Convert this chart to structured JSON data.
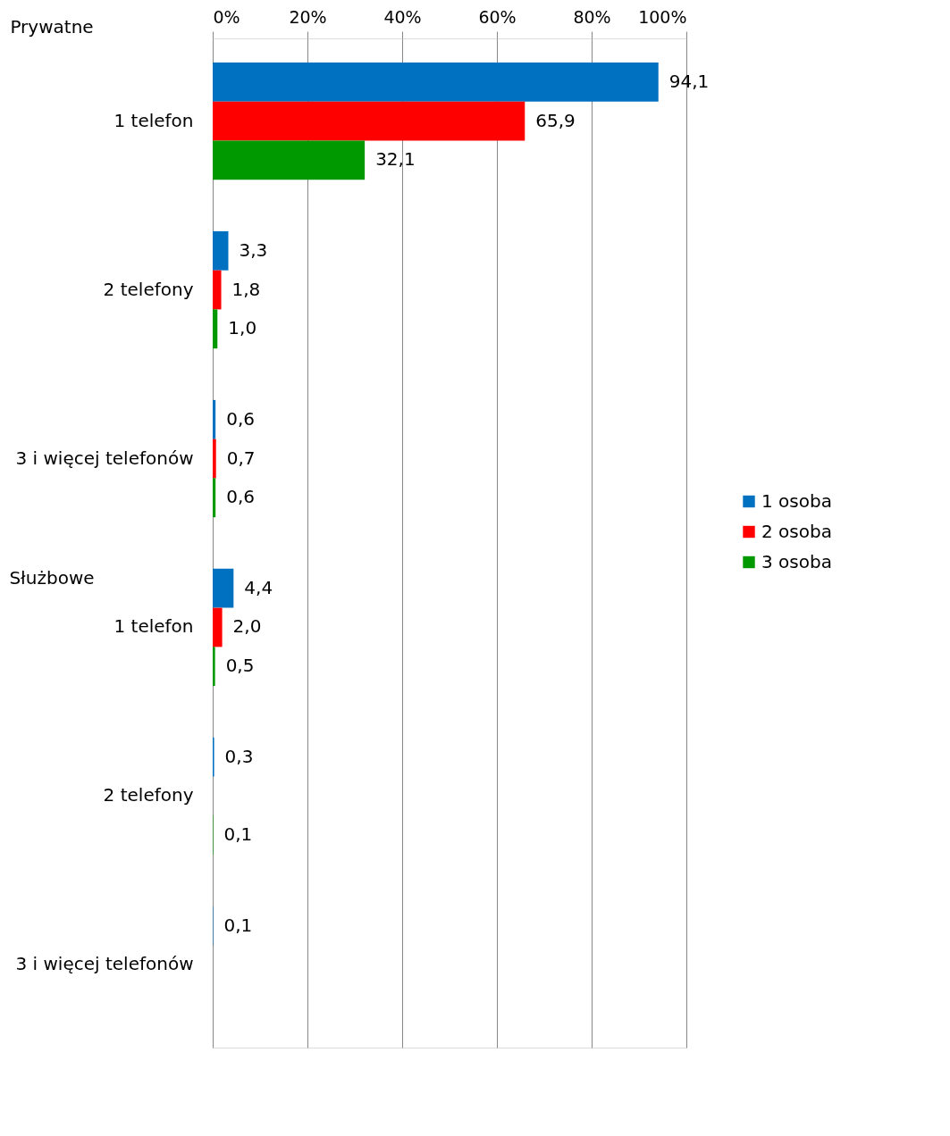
{
  "chart_data": {
    "type": "bar",
    "orientation": "horizontal",
    "categories": [
      "1 telefon",
      "2 telefony",
      "3 i więcej telefonów",
      "1 telefon",
      "2 telefony",
      "3 i więcej telefonów"
    ],
    "series": [
      {
        "name": "1 osoba",
        "color": "#0070c0",
        "values": [
          94.1,
          3.3,
          0.6,
          4.4,
          0.3,
          0.1
        ],
        "value_labels": [
          "94,1",
          "3,3",
          "0,6",
          "4,4",
          "0,3",
          "0,1"
        ]
      },
      {
        "name": "2 osoba",
        "color": "#ff0000",
        "values": [
          65.9,
          1.8,
          0.7,
          2.0,
          null,
          null
        ],
        "value_labels": [
          "65,9",
          "1,8",
          "0,7",
          "2,0",
          null,
          null
        ]
      },
      {
        "name": "3 osoba",
        "color": "#009900",
        "values": [
          32.1,
          1.0,
          0.6,
          0.5,
          0.1,
          null
        ],
        "value_labels": [
          "32,1",
          "1,0",
          "0,6",
          "0,5",
          "0,1",
          null
        ]
      }
    ],
    "xlim": [
      0,
      100
    ],
    "xticks": [
      {
        "value": 0,
        "label": "0%"
      },
      {
        "value": 20,
        "label": "20%"
      },
      {
        "value": 40,
        "label": "40%"
      },
      {
        "value": 60,
        "label": "60%"
      },
      {
        "value": 80,
        "label": "80%"
      },
      {
        "value": 100,
        "label": "100%"
      }
    ],
    "annotations": [
      "Prywatne",
      "Służbowe"
    ],
    "grid": "x",
    "legend": "right"
  }
}
